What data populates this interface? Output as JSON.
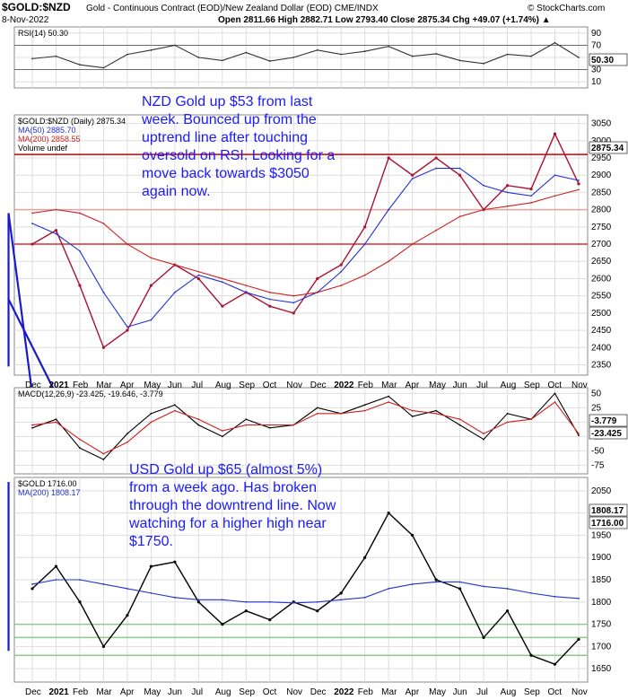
{
  "header": {
    "symbol": "$GOLD:$NZD",
    "name": "Gold - Continuous Contract (EOD)/New Zealand Dollar (EOD) CME/INDX",
    "source": "© StockCharts.com",
    "date": "8-Nov-2022",
    "quote": "Open 2811.66  High 2882.71  Low 2793.40  Close 2875.34  Chg +49.07 (+1.74%) ▲"
  },
  "annotations": {
    "nzd_note": [
      "NZD Gold up $53 from last",
      "week. Bounced up from the",
      "uptrend line after touching",
      "oversold on RSI. Looking for a",
      "move back towards $3050",
      "again now."
    ],
    "usd_note": [
      "USD Gold up $65 (almost 5%)",
      "from a week ago. Has broken",
      "through the downtrend line. Now",
      "watching for a higher high near",
      "$1750."
    ]
  },
  "x_axis": [
    "Dec",
    "2021",
    "Feb",
    "Mar",
    "Apr",
    "May",
    "Jun",
    "Jul",
    "Aug",
    "Sep",
    "Oct",
    "Nov",
    "Dec",
    "2022",
    "Feb",
    "Mar",
    "Apr",
    "May",
    "Jun",
    "Jul",
    "Aug",
    "Sep",
    "Oct",
    "Nov"
  ],
  "chart_data": [
    {
      "type": "line",
      "panel": "rsi",
      "legend": [
        "RSI(14) 50.30"
      ],
      "yticks": [
        90,
        70,
        50,
        30,
        10
      ],
      "ylim": [
        0,
        100
      ],
      "last_value_label": "50.30",
      "reference_lines": [
        70,
        30
      ],
      "x": [
        "Dec 2020",
        "Jan 2021",
        "Feb",
        "Mar",
        "Apr",
        "May",
        "Jun",
        "Jul",
        "Aug",
        "Sep",
        "Oct",
        "Nov",
        "Dec",
        "Jan 2022",
        "Feb",
        "Mar",
        "Apr",
        "May",
        "Jun",
        "Jul",
        "Aug",
        "Sep",
        "Oct",
        "Nov"
      ],
      "series": [
        {
          "name": "RSI(14)",
          "values": [
            48,
            52,
            38,
            33,
            55,
            62,
            70,
            50,
            45,
            58,
            44,
            50,
            62,
            55,
            60,
            68,
            52,
            56,
            45,
            40,
            55,
            52,
            74,
            50
          ]
        }
      ]
    },
    {
      "type": "line",
      "panel": "price-nzd",
      "legend": [
        "$GOLD:$NZD (Daily) 2875.34",
        "MA(50) 2885.70",
        "MA(200) 2858.55",
        "Volume undef"
      ],
      "yticks": [
        3050,
        3000,
        2950,
        2900,
        2850,
        2800,
        2750,
        2700,
        2650,
        2600,
        2550,
        2500,
        2450,
        2400,
        2350
      ],
      "ylim": [
        2320,
        3075
      ],
      "last_value_label": "2875.34",
      "horizontal_lines": [
        {
          "value": 2960,
          "color": "#cc0000"
        },
        {
          "value": 2800,
          "color": "#e8a0a0"
        },
        {
          "value": 2700,
          "color": "#cc3333"
        }
      ],
      "trend_lines": [
        {
          "from": [
            "Dec 2020",
            2265
          ],
          "to": [
            "Nov 2022",
            2790
          ]
        },
        {
          "from": [
            "Mar 2021",
            2345
          ],
          "to": [
            "Nov 2022",
            2790
          ]
        },
        {
          "from": [
            "Jan 2021",
            2265
          ],
          "to": [
            "Nov 2022",
            2540
          ]
        }
      ],
      "x": [
        "Dec 2020",
        "Jan 2021",
        "Feb",
        "Mar",
        "Apr",
        "May",
        "Jun",
        "Jul",
        "Aug",
        "Sep",
        "Oct",
        "Nov",
        "Dec",
        "Jan 2022",
        "Feb",
        "Mar",
        "Apr",
        "May",
        "Jun",
        "Jul",
        "Aug",
        "Sep",
        "Oct",
        "Nov"
      ],
      "series": [
        {
          "name": "$GOLD:$NZD",
          "values": [
            2700,
            2740,
            2580,
            2400,
            2450,
            2580,
            2640,
            2600,
            2520,
            2560,
            2520,
            2500,
            2600,
            2640,
            2750,
            2950,
            2900,
            2950,
            2900,
            2800,
            2870,
            2860,
            3020,
            2875
          ]
        },
        {
          "name": "MA(50)",
          "values": [
            2760,
            2730,
            2680,
            2560,
            2460,
            2480,
            2560,
            2610,
            2590,
            2560,
            2540,
            2530,
            2560,
            2620,
            2700,
            2800,
            2890,
            2920,
            2920,
            2870,
            2850,
            2840,
            2900,
            2885
          ]
        },
        {
          "name": "MA(200)",
          "values": [
            2790,
            2800,
            2790,
            2760,
            2700,
            2660,
            2640,
            2620,
            2600,
            2580,
            2560,
            2550,
            2560,
            2580,
            2610,
            2650,
            2700,
            2740,
            2780,
            2800,
            2810,
            2820,
            2840,
            2858
          ]
        }
      ]
    },
    {
      "type": "line",
      "panel": "macd",
      "legend": [
        "MACD(12,26,9) -23.425, -19.646, -3.779"
      ],
      "yticks": [
        50,
        25,
        0,
        -25,
        -50,
        -75
      ],
      "ylim": [
        -90,
        60
      ],
      "last_value_labels": [
        "-3.779",
        "-23.425"
      ],
      "x": [
        "Dec 2020",
        "Jan 2021",
        "Feb",
        "Mar",
        "Apr",
        "May",
        "Jun",
        "Jul",
        "Aug",
        "Sep",
        "Oct",
        "Nov",
        "Dec",
        "Jan 2022",
        "Feb",
        "Mar",
        "Apr",
        "May",
        "Jun",
        "Jul",
        "Aug",
        "Sep",
        "Oct",
        "Nov"
      ],
      "series": [
        {
          "name": "MACD",
          "values": [
            -10,
            5,
            -45,
            -65,
            -20,
            15,
            30,
            -5,
            -25,
            5,
            -10,
            -5,
            25,
            15,
            30,
            45,
            10,
            20,
            -5,
            -30,
            15,
            5,
            50,
            -23
          ]
        },
        {
          "name": "Signal",
          "values": [
            -5,
            0,
            -30,
            -55,
            -35,
            0,
            20,
            5,
            -15,
            -5,
            -5,
            -5,
            15,
            15,
            20,
            35,
            20,
            15,
            5,
            -20,
            0,
            5,
            35,
            -20
          ]
        }
      ]
    },
    {
      "type": "line",
      "panel": "price-usd",
      "legend": [
        "$GOLD 1716.00",
        "MA(200) 1808.17"
      ],
      "yticks": [
        2050,
        2000,
        1950,
        1900,
        1850,
        1800,
        1750,
        1700,
        1650
      ],
      "ylim": [
        1620,
        2080
      ],
      "last_value_labels": [
        "1808.17",
        "1716.00"
      ],
      "horizontal_lines": [
        {
          "value": 1750,
          "color": "#88cc88"
        },
        {
          "value": 1720,
          "color": "#88cc88"
        },
        {
          "value": 1680,
          "color": "#88cc88"
        }
      ],
      "trend_lines": [
        {
          "from": [
            "Mar 2022",
            2070
          ],
          "to": [
            "Nov 2022",
            1690
          ]
        }
      ],
      "x": [
        "Dec 2020",
        "Jan 2021",
        "Feb",
        "Mar",
        "Apr",
        "May",
        "Jun",
        "Jul",
        "Aug",
        "Sep",
        "Oct",
        "Nov",
        "Dec",
        "Jan 2022",
        "Feb",
        "Mar",
        "Apr",
        "May",
        "Jun",
        "Jul",
        "Aug",
        "Sep",
        "Oct",
        "Nov"
      ],
      "series": [
        {
          "name": "$GOLD",
          "values": [
            1830,
            1880,
            1800,
            1700,
            1770,
            1880,
            1890,
            1800,
            1750,
            1780,
            1760,
            1800,
            1780,
            1820,
            1900,
            2000,
            1950,
            1850,
            1830,
            1720,
            1780,
            1680,
            1660,
            1716
          ]
        },
        {
          "name": "MA(200)",
          "values": [
            1840,
            1850,
            1850,
            1840,
            1830,
            1820,
            1810,
            1805,
            1805,
            1800,
            1800,
            1798,
            1800,
            1805,
            1810,
            1830,
            1840,
            1845,
            1845,
            1835,
            1830,
            1820,
            1812,
            1808
          ]
        }
      ]
    }
  ],
  "colors": {
    "price": "#aa1133",
    "ma50": "#2233cc",
    "ma200": "#cc2222",
    "trend": "#1a1acc",
    "grid": "#dddddd",
    "panel_border": "#888888"
  }
}
